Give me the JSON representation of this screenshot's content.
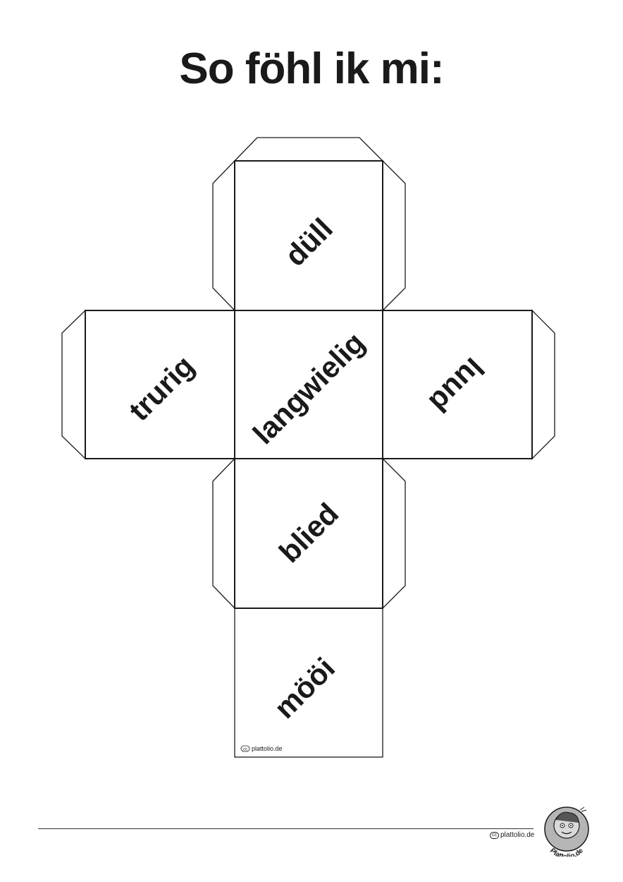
{
  "page": {
    "title": "So föhl ik mi:"
  },
  "cube_net": {
    "faces": [
      {
        "position": "top",
        "word": "düll"
      },
      {
        "position": "left",
        "word": "trurig"
      },
      {
        "position": "center",
        "word": "langwielig"
      },
      {
        "position": "right",
        "word": "luud"
      },
      {
        "position": "lower",
        "word": "blied"
      },
      {
        "position": "bottom",
        "word": "mööi"
      }
    ],
    "credit": "plattolio.de",
    "credit_icon": "cc-icon"
  },
  "footer": {
    "credit": "plattolio.de",
    "credit_icon": "cc-icon",
    "logo_text": "Plattolio.de"
  }
}
